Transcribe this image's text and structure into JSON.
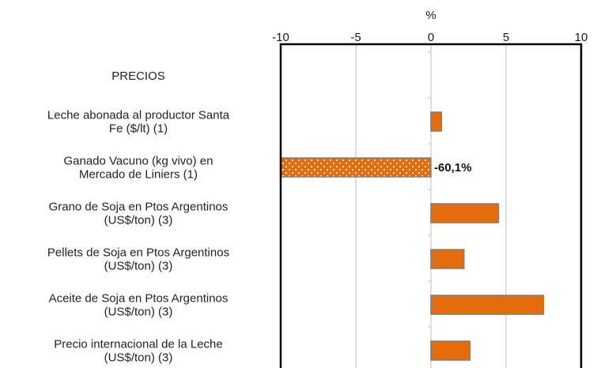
{
  "chart_data": {
    "type": "bar",
    "orientation": "horizontal",
    "axis_unit_label": "%",
    "x_axis_position": "top",
    "xlim": [
      -10,
      10
    ],
    "x_ticks": [
      -10,
      -5,
      0,
      5,
      10
    ],
    "grid": true,
    "categories": [
      "PRECIOS",
      "Leche abonada al productor Santa Fe ($/lt) (1)",
      "Ganado Vacuno (kg vivo) en Mercado de Liniers (1)",
      "Grano de Soja en Ptos Argentinos (US$/ton) (3)",
      "Pellets de Soja en Ptos Argentinos (US$/ton) (3)",
      "Aceite de Soja en Ptos Argentinos (US$/ton) (3)",
      "Precio internacional de la Leche (US$/ton) (3)"
    ],
    "category_lines": [
      [
        "PRECIOS"
      ],
      [
        "Leche abonada al productor Santa",
        "Fe ($/lt) (1)"
      ],
      [
        "Ganado Vacuno (kg vivo) en",
        "Mercado de Liniers (1)"
      ],
      [
        "Grano de Soja en Ptos Argentinos",
        "(US$/ton) (3)"
      ],
      [
        "Pellets de Soja en Ptos Argentinos",
        "(US$/ton) (3)"
      ],
      [
        "Aceite de Soja en Ptos Argentinos",
        "(US$/ton) (3)"
      ],
      [
        "Precio internacional de la Leche",
        "(US$/ton) (3)"
      ]
    ],
    "values": [
      null,
      0.7,
      -60.1,
      4.5,
      2.2,
      7.5,
      2.6
    ],
    "data_labels": [
      "",
      "",
      "-60,1%",
      "",
      "",
      "",
      ""
    ],
    "clipped_beyond_axis": [
      false,
      false,
      true,
      false,
      false,
      false,
      false
    ],
    "colors": {
      "bar_fill": "#E46C0A",
      "bar_stroke": "#7F7F7F",
      "clipped_pattern_dot": "#FFFFFF",
      "grid": "#BFBFBF",
      "frame": "#000000"
    }
  }
}
